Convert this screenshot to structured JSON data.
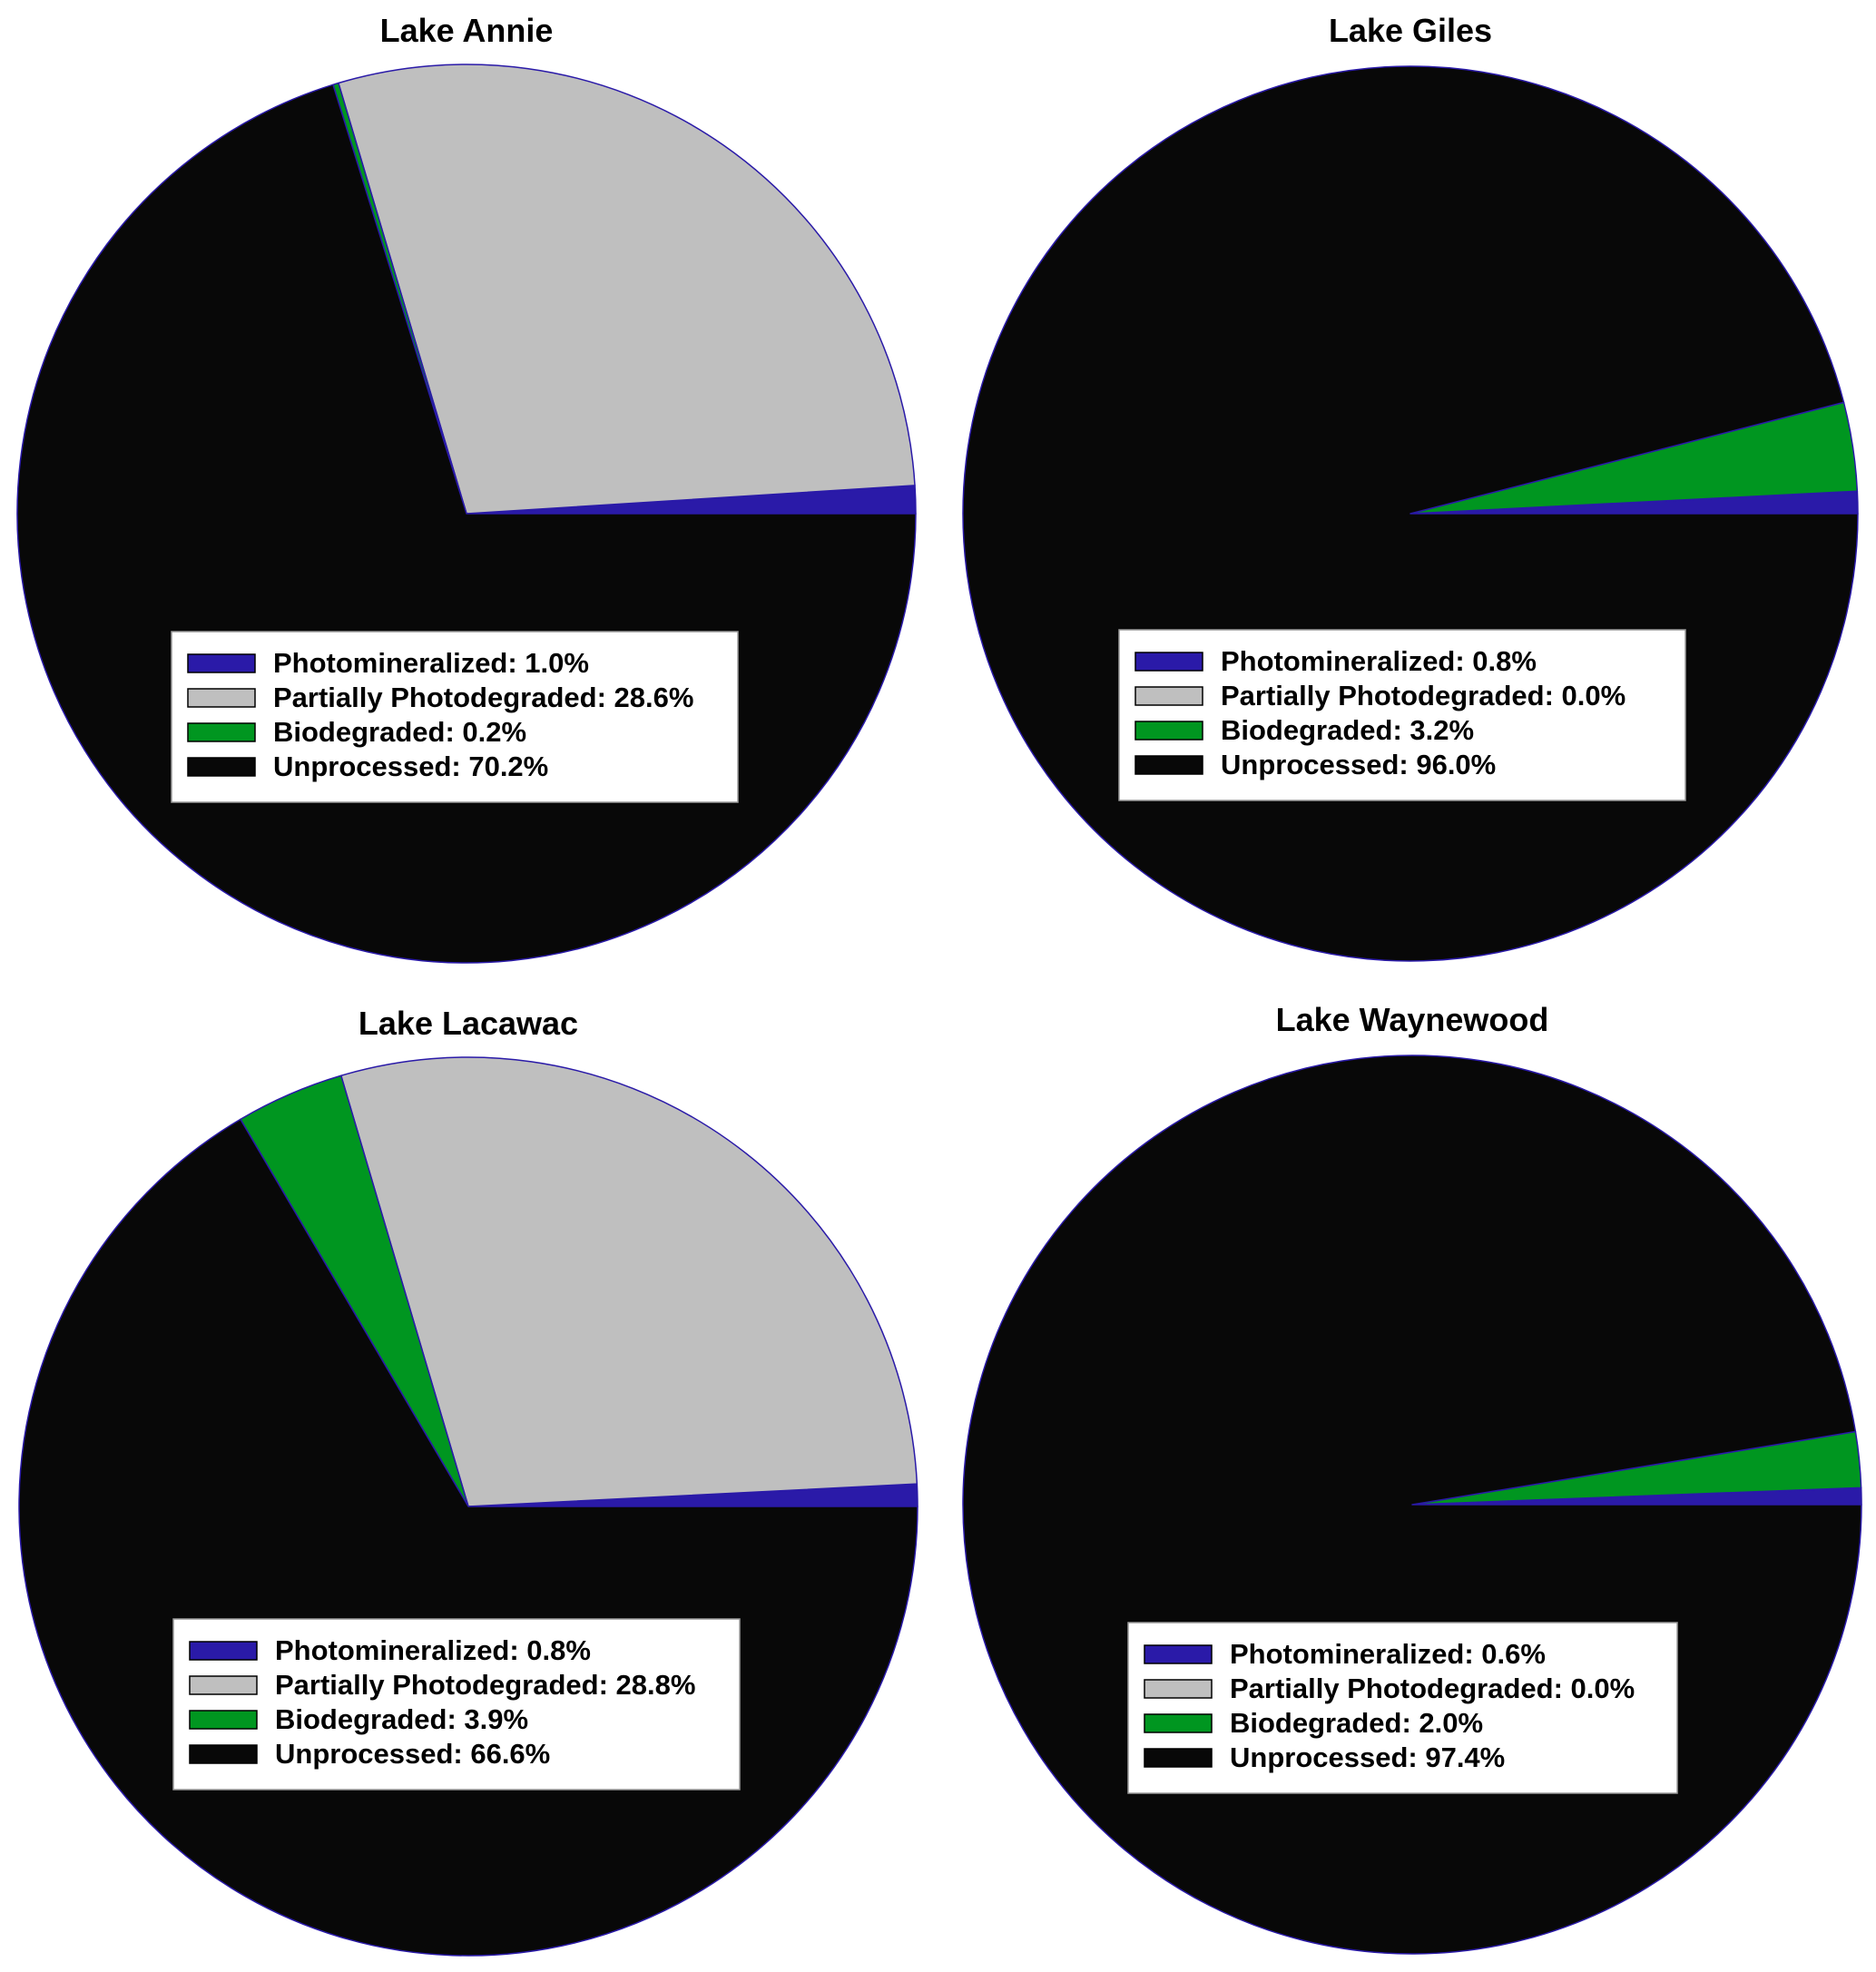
{
  "chart_data": [
    {
      "type": "pie",
      "title": "Lake Annie",
      "legend_position": "bottom-center",
      "slices": [
        {
          "name": "Photomineralized",
          "value": 1.0,
          "label": "Photomineralized: 1.0%",
          "color": "#2a1aa8"
        },
        {
          "name": "Partially Photodegraded",
          "value": 28.6,
          "label": "Partially Photodegraded: 28.6%",
          "color": "#bfbfbf"
        },
        {
          "name": "Biodegraded",
          "value": 0.2,
          "label": "Biodegraded: 0.2%",
          "color": "#009620"
        },
        {
          "name": "Unprocessed",
          "value": 70.2,
          "label": "Unprocessed: 70.2%",
          "color": "#080808"
        }
      ]
    },
    {
      "type": "pie",
      "title": "Lake Giles",
      "legend_position": "bottom-center",
      "slices": [
        {
          "name": "Photomineralized",
          "value": 0.8,
          "label": "Photomineralized: 0.8%",
          "color": "#2a1aa8"
        },
        {
          "name": "Partially Photodegraded",
          "value": 0.0,
          "label": "Partially Photodegraded: 0.0%",
          "color": "#bfbfbf"
        },
        {
          "name": "Biodegraded",
          "value": 3.2,
          "label": "Biodegraded: 3.2%",
          "color": "#009620"
        },
        {
          "name": "Unprocessed",
          "value": 96.0,
          "label": "Unprocessed: 96.0%",
          "color": "#080808"
        }
      ]
    },
    {
      "type": "pie",
      "title": "Lake Lacawac",
      "legend_position": "bottom-center",
      "slices": [
        {
          "name": "Photomineralized",
          "value": 0.8,
          "label": "Photomineralized: 0.8%",
          "color": "#2a1aa8"
        },
        {
          "name": "Partially Photodegraded",
          "value": 28.8,
          "label": "Partially Photodegraded: 28.8%",
          "color": "#bfbfbf"
        },
        {
          "name": "Biodegraded",
          "value": 3.9,
          "label": "Biodegraded: 3.9%",
          "color": "#009620"
        },
        {
          "name": "Unprocessed",
          "value": 66.6,
          "label": "Unprocessed: 66.6%",
          "color": "#080808"
        }
      ]
    },
    {
      "type": "pie",
      "title": "Lake Waynewood",
      "legend_position": "bottom-center",
      "slices": [
        {
          "name": "Photomineralized",
          "value": 0.6,
          "label": "Photomineralized: 0.6%",
          "color": "#2a1aa8"
        },
        {
          "name": "Partially Photodegraded",
          "value": 0.0,
          "label": "Partially Photodegraded: 0.0%",
          "color": "#bfbfbf"
        },
        {
          "name": "Biodegraded",
          "value": 2.0,
          "label": "Biodegraded: 2.0%",
          "color": "#009620"
        },
        {
          "name": "Unprocessed",
          "value": 97.4,
          "label": "Unprocessed: 97.4%",
          "color": "#080808"
        }
      ]
    }
  ]
}
